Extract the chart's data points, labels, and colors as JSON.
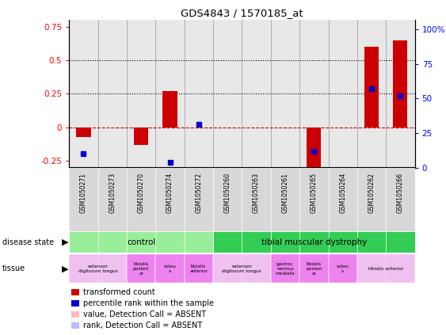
{
  "title": "GDS4843 / 1570185_at",
  "samples": [
    "GSM1050271",
    "GSM1050273",
    "GSM1050270",
    "GSM1050274",
    "GSM1050272",
    "GSM1050260",
    "GSM1050263",
    "GSM1050261",
    "GSM1050265",
    "GSM1050264",
    "GSM1050262",
    "GSM1050266"
  ],
  "red_bar_positions": [
    0,
    2,
    3,
    8,
    10,
    11
  ],
  "red_bar_values": [
    -0.07,
    -0.13,
    0.27,
    -0.3,
    0.6,
    0.65
  ],
  "blue_sq_positions": [
    0,
    3,
    4,
    8,
    10,
    11
  ],
  "blue_sq_values_pct": [
    10,
    4,
    31,
    12,
    57,
    52
  ],
  "ylim_left": [
    -0.3,
    0.8
  ],
  "ylim_right": [
    0,
    106.67
  ],
  "yticks_left": [
    -0.25,
    0.0,
    0.25,
    0.5,
    0.75
  ],
  "yticks_right": [
    0,
    25,
    50,
    75,
    100
  ],
  "ytick_labels_right": [
    "0",
    "25",
    "50",
    "75",
    "100%"
  ],
  "hlines_dotted": [
    0.25,
    0.5
  ],
  "hline_dashed": 0.0,
  "bar_color_red": "#cc0000",
  "bar_color_blue": "#0000cc",
  "plot_bg_color": "#e8e8e8",
  "control_color": "#99ee99",
  "dystrophy_color": "#33cc55",
  "tissue_color_pink": "#f0b0f0",
  "tissue_color_violet": "#dd88ee",
  "legend_items": [
    {
      "color": "#cc0000",
      "label": "transformed count"
    },
    {
      "color": "#0000cc",
      "label": "percentile rank within the sample"
    },
    {
      "color": "#ffbbbb",
      "label": "value, Detection Call = ABSENT"
    },
    {
      "color": "#bbbbff",
      "label": "rank, Detection Call = ABSENT"
    }
  ],
  "tissue_groups": [
    {
      "label": "extensor\ndigitorum longus",
      "start": 0,
      "end": 2,
      "color": "#f0c0f0"
    },
    {
      "label": "tibialis\nposteri\nor",
      "start": 2,
      "end": 3,
      "color": "#ee82ee"
    },
    {
      "label": "soleu\ns",
      "start": 3,
      "end": 4,
      "color": "#ee82ee"
    },
    {
      "label": "tibialis\nanterior",
      "start": 4,
      "end": 5,
      "color": "#ee82ee"
    },
    {
      "label": "extensor\ndigitorum longus",
      "start": 5,
      "end": 7,
      "color": "#f0c0f0"
    },
    {
      "label": "gastroc\nnemius\nmedialis",
      "start": 7,
      "end": 8,
      "color": "#ee82ee"
    },
    {
      "label": "tibialis\nposteri\nor",
      "start": 8,
      "end": 9,
      "color": "#ee82ee"
    },
    {
      "label": "soleu\ns",
      "start": 9,
      "end": 10,
      "color": "#ee82ee"
    },
    {
      "label": "tibialis anterior",
      "start": 10,
      "end": 12,
      "color": "#f0c0f0"
    }
  ]
}
